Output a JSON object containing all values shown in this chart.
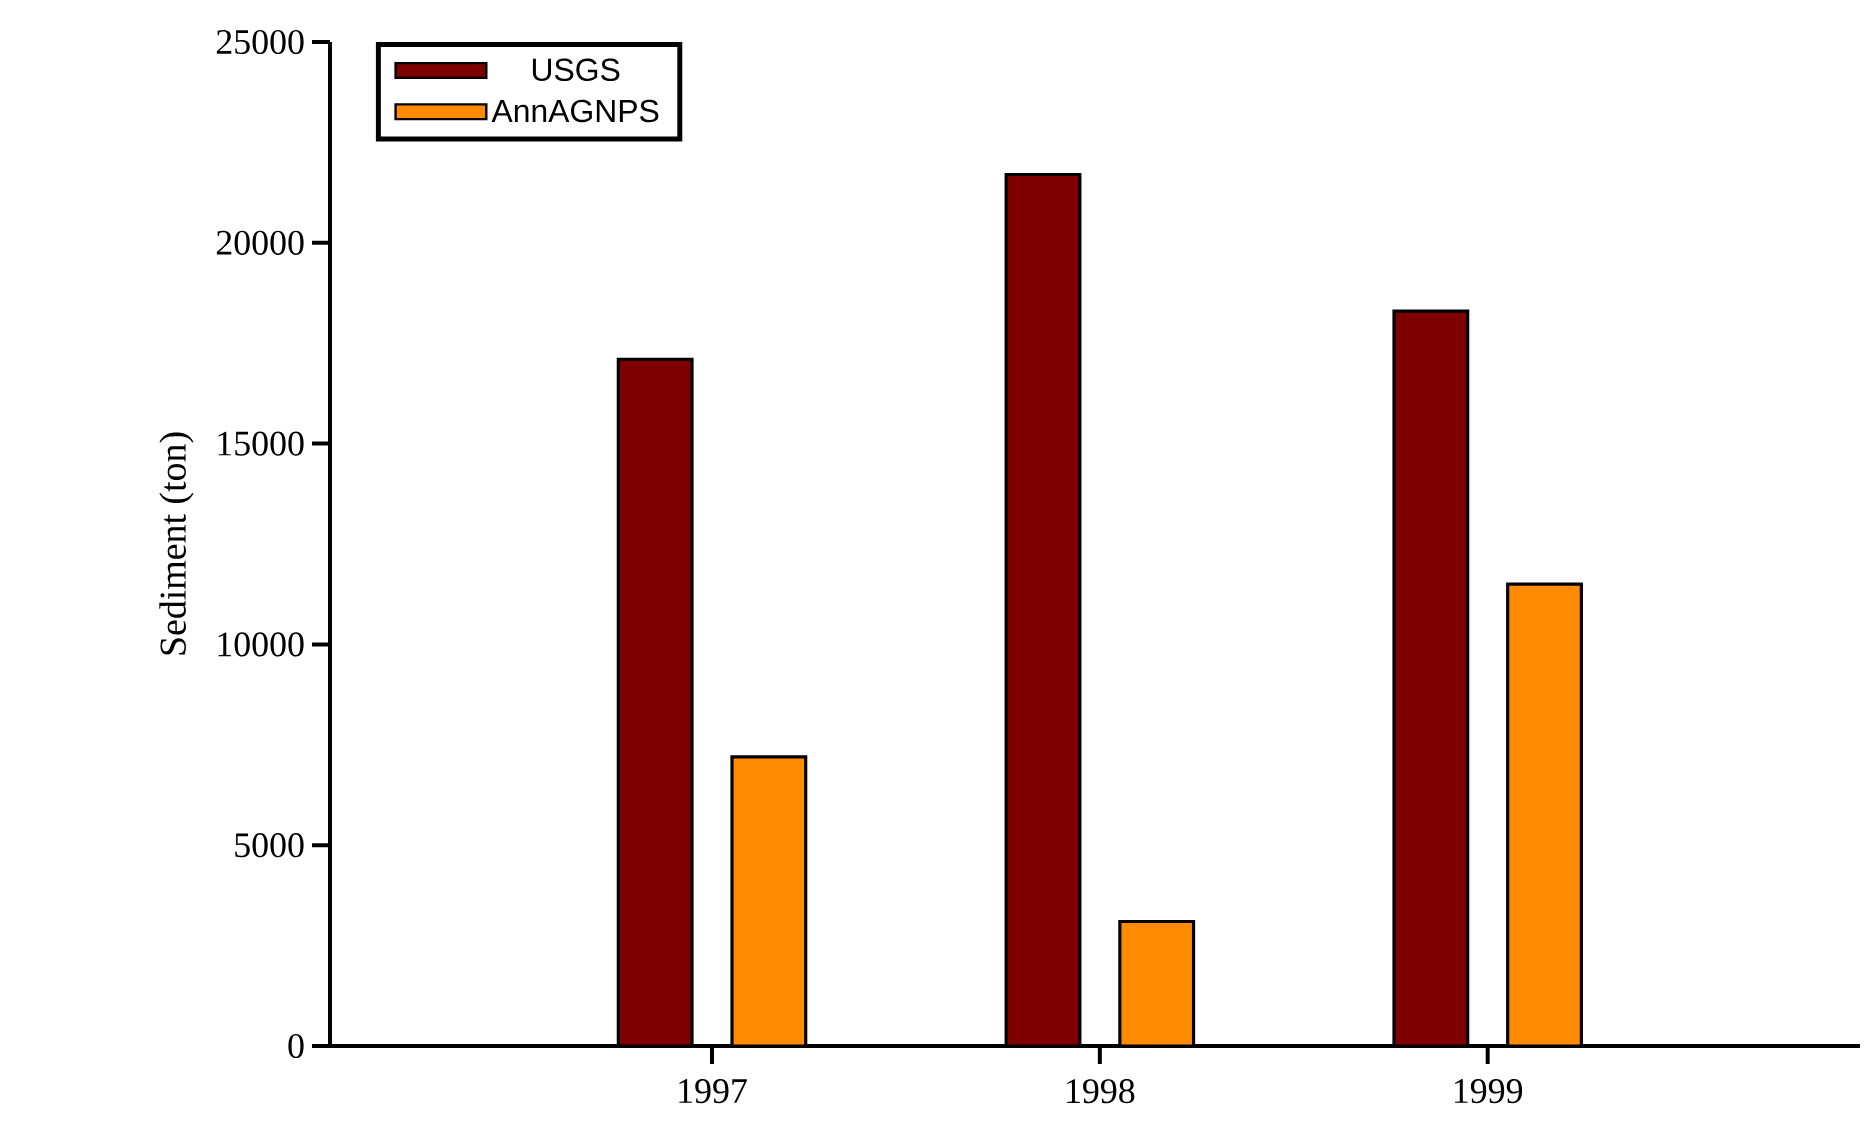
{
  "chart_data": {
    "type": "bar",
    "ylabel": "Sediment (ton)",
    "categories": [
      "1997",
      "1998",
      "1999"
    ],
    "series": [
      {
        "name": "USGS",
        "color": "#7f0000",
        "values": [
          17100,
          21700,
          18300
        ]
      },
      {
        "name": "AnnAGNPS",
        "color": "#ff8c00",
        "values": [
          7200,
          3100,
          11500
        ]
      }
    ],
    "ylim": [
      0,
      25000
    ],
    "yticks": [
      0,
      5000,
      10000,
      15000,
      20000,
      25000
    ],
    "grid": false,
    "legend": "top left"
  }
}
